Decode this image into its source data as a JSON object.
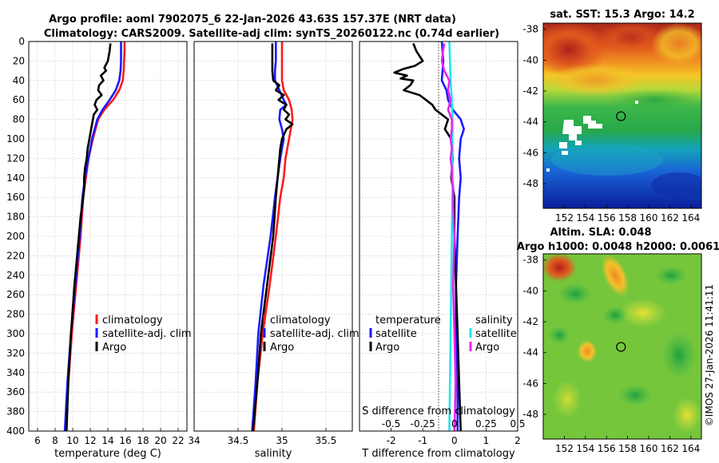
{
  "figure": {
    "title_line1": "Argo profile: aoml 7902075_6 22-Jan-2026 43.63S 157.37E (NRT data)",
    "title_line2": "Climatology: CARS2009. Satellite-adj clim: synTS_20260122.nc (0.74d earlier)",
    "copyright": "©IMOS 27-Jan-2026 11:41:11"
  },
  "colors": {
    "climatology": "#ff1a1a",
    "satellite": "#1a1aff",
    "argo": "#000000",
    "sal_satellite": "#1ee6f0",
    "sal_argo": "#ee22ee"
  },
  "chart_data": [
    {
      "id": "temperature",
      "type": "line",
      "xlabel": "temperature (deg C)",
      "xlim": [
        5,
        23
      ],
      "ylim": [
        400,
        0
      ],
      "xticks": [
        6,
        8,
        10,
        12,
        14,
        16,
        18,
        20,
        22
      ],
      "yticks": [
        0,
        20,
        40,
        60,
        80,
        100,
        120,
        140,
        160,
        180,
        200,
        220,
        240,
        260,
        280,
        300,
        320,
        340,
        360,
        380,
        400
      ],
      "legend": [
        "climatology",
        "satellite-adj. clim",
        "Argo"
      ],
      "series": [
        {
          "name": "climatology",
          "color": "#ff1a1a",
          "depth": [
            0,
            10,
            20,
            30,
            40,
            50,
            60,
            70,
            80,
            100,
            120,
            140,
            160,
            200,
            250,
            300,
            350,
            400
          ],
          "values": [
            15.9,
            15.9,
            15.85,
            15.8,
            15.7,
            15.3,
            14.6,
            13.6,
            12.9,
            12.3,
            11.8,
            11.5,
            11.2,
            10.9,
            10.4,
            9.9,
            9.5,
            9.2
          ]
        },
        {
          "name": "satellite-adj. clim",
          "color": "#1a1aff",
          "depth": [
            0,
            10,
            20,
            30,
            40,
            50,
            60,
            70,
            80,
            100,
            120,
            140,
            160,
            200,
            250,
            300,
            350,
            400
          ],
          "values": [
            15.5,
            15.5,
            15.5,
            15.45,
            15.3,
            14.9,
            14.2,
            13.4,
            12.8,
            12.2,
            11.8,
            11.4,
            11.1,
            10.8,
            10.3,
            9.8,
            9.4,
            9.1
          ]
        },
        {
          "name": "Argo",
          "color": "#000000",
          "depth": [
            2,
            10,
            20,
            27,
            30,
            35,
            40,
            45,
            50,
            55,
            60,
            65,
            70,
            75,
            80,
            90,
            100,
            110,
            120,
            130,
            140,
            150,
            160,
            180,
            200,
            250,
            300,
            350,
            400
          ],
          "values": [
            14.3,
            14.2,
            14.0,
            13.6,
            13.8,
            13.2,
            13.5,
            13.0,
            12.9,
            13.3,
            12.7,
            12.5,
            12.8,
            12.4,
            12.3,
            12.1,
            11.9,
            11.7,
            11.6,
            11.4,
            11.3,
            11.3,
            11.2,
            10.9,
            10.7,
            10.2,
            9.8,
            9.5,
            9.3
          ]
        }
      ]
    },
    {
      "id": "salinity",
      "type": "line",
      "xlabel": "salinity",
      "xlim": [
        34,
        35.8
      ],
      "ylim": [
        400,
        0
      ],
      "xticks": [
        34,
        34.5,
        35,
        35.5
      ],
      "legend": [
        "climatology",
        "satellite-adj. clim",
        "Argo"
      ],
      "series": [
        {
          "name": "climatology",
          "color": "#ff1a1a",
          "depth": [
            0,
            10,
            20,
            30,
            40,
            50,
            60,
            70,
            80,
            90,
            100,
            110,
            120,
            140,
            160,
            200,
            250,
            300,
            350,
            400
          ],
          "values": [
            35.0,
            35.0,
            35.0,
            35.0,
            35.0,
            35.02,
            35.08,
            35.11,
            35.12,
            35.1,
            35.08,
            35.06,
            35.04,
            35.02,
            34.98,
            34.93,
            34.86,
            34.78,
            34.72,
            34.68
          ]
        },
        {
          "name": "satellite-adj. clim",
          "color": "#1a1aff",
          "depth": [
            0,
            10,
            20,
            30,
            40,
            50,
            60,
            65,
            70,
            80,
            90,
            100,
            110,
            120,
            140,
            160,
            200,
            250,
            300,
            350,
            400
          ],
          "values": [
            34.93,
            34.93,
            34.93,
            34.92,
            34.92,
            34.97,
            35.02,
            35.05,
            34.98,
            34.97,
            35.0,
            35.02,
            35.0,
            34.98,
            34.95,
            34.92,
            34.87,
            34.79,
            34.73,
            34.7,
            34.66
          ]
        },
        {
          "name": "Argo",
          "color": "#000000",
          "depth": [
            2,
            10,
            20,
            30,
            40,
            45,
            50,
            55,
            60,
            65,
            70,
            75,
            80,
            85,
            90,
            100,
            110,
            120,
            130,
            140,
            160,
            200,
            250,
            300,
            350,
            400
          ],
          "values": [
            34.89,
            34.89,
            34.89,
            34.89,
            34.9,
            34.97,
            34.93,
            35.02,
            34.96,
            35.05,
            35.02,
            35.08,
            35.04,
            35.12,
            35.05,
            35.0,
            34.98,
            34.97,
            34.96,
            34.95,
            34.93,
            34.9,
            34.83,
            34.76,
            34.72,
            34.67
          ]
        }
      ]
    },
    {
      "id": "differences",
      "type": "line",
      "xlabel": "T difference from climatology",
      "xlim": [
        -3,
        2
      ],
      "ylim": [
        400,
        0
      ],
      "xticks": [
        -2,
        -1,
        0,
        1,
        2
      ],
      "s_axis_title": "S difference from climatology",
      "s_xticks": [
        "-0.5",
        "-0.25",
        "0",
        "0.25",
        "0.5"
      ],
      "legend_temperature_title": "temperature",
      "legend_salinity_title": "salinity",
      "legend_temperature": [
        "satellite",
        "Argo"
      ],
      "legend_salinity": [
        "satellite",
        "Argo"
      ],
      "series": [
        {
          "name": "T satellite",
          "color": "#1a1aff",
          "depth": [
            0,
            20,
            40,
            50,
            60,
            70,
            80,
            90,
            100,
            120,
            140,
            160,
            200,
            250,
            300,
            350,
            400
          ],
          "values": [
            -0.4,
            -0.35,
            -0.4,
            -0.25,
            -0.2,
            -0.05,
            0.2,
            0.3,
            0.2,
            0.15,
            0.2,
            0.15,
            0.1,
            0.05,
            0.05,
            0.1,
            0.1
          ]
        },
        {
          "name": "T Argo",
          "color": "#000000",
          "depth": [
            2,
            10,
            15,
            20,
            25,
            28,
            32,
            35,
            38,
            40,
            45,
            50,
            55,
            60,
            65,
            70,
            75,
            80,
            90,
            100,
            120,
            140,
            160,
            200,
            250,
            300,
            350,
            400
          ],
          "values": [
            -1.3,
            -1.2,
            -1.1,
            -1.0,
            -1.25,
            -1.6,
            -1.9,
            -1.5,
            -1.7,
            -1.3,
            -1.4,
            -1.6,
            -1.1,
            -0.9,
            -0.7,
            -0.6,
            -0.4,
            -0.2,
            -0.3,
            -0.1,
            -0.05,
            -0.1,
            0.0,
            0.0,
            0.05,
            0.1,
            0.15,
            0.2
          ]
        },
        {
          "name": "S satellite",
          "color": "#1ee6f0",
          "depth": [
            0,
            20,
            40,
            60,
            80,
            100,
            150,
            200,
            300,
            400
          ],
          "values": [
            -0.04,
            -0.035,
            -0.03,
            -0.02,
            -0.015,
            -0.015,
            -0.015,
            -0.02,
            -0.03,
            -0.04
          ]
        },
        {
          "name": "S Argo",
          "color": "#ee22ee",
          "depth": [
            2,
            10,
            20,
            30,
            40,
            50,
            60,
            70,
            80,
            90,
            100,
            110,
            120,
            130,
            140,
            150,
            170,
            200,
            250,
            300,
            350,
            400
          ],
          "values": [
            -0.08,
            -0.09,
            -0.1,
            -0.08,
            -0.04,
            -0.05,
            -0.03,
            -0.05,
            -0.02,
            -0.02,
            -0.03,
            -0.02,
            -0.03,
            -0.02,
            -0.02,
            -0.01,
            -0.01,
            0.0,
            -0.01,
            0.0,
            0.01,
            0.0
          ]
        }
      ]
    },
    {
      "id": "sst_map",
      "type": "heatmap",
      "title": "sat. SST: 15.3 Argo: 14.2",
      "xticks": [
        152,
        154,
        156,
        158,
        160,
        162,
        164
      ],
      "yticks": [
        -38,
        -40,
        -42,
        -44,
        -46,
        -48
      ],
      "xlim": [
        150,
        165
      ],
      "ylim": [
        -49.6,
        -37.6
      ],
      "marker": {
        "lon": 157.37,
        "lat": -43.63
      }
    },
    {
      "id": "sla_map",
      "type": "heatmap",
      "title_line1": "Altim. SLA: 0.048",
      "title_line2": "Argo h1000: 0.0048 h2000: 0.0061",
      "xticks": [
        152,
        154,
        156,
        158,
        160,
        162,
        164
      ],
      "yticks": [
        -38,
        -40,
        -42,
        -44,
        -46,
        -48
      ],
      "xlim": [
        150,
        165
      ],
      "ylim": [
        -49.6,
        -37.6
      ],
      "marker": {
        "lon": 157.37,
        "lat": -43.63
      }
    }
  ]
}
